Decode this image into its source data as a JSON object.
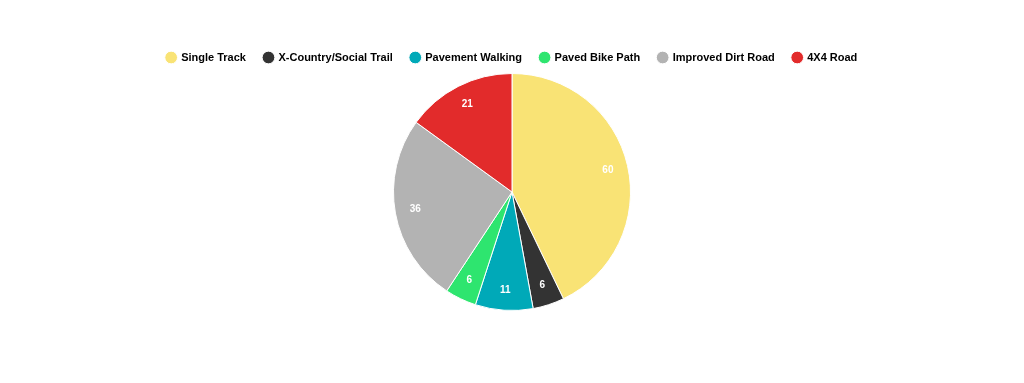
{
  "chart_data": {
    "type": "pie",
    "categories": [
      "Single Track",
      "X-Country/Social Trail",
      "Pavement Walking",
      "Paved Bike Path",
      "Improved Dirt Road",
      "4X4 Road"
    ],
    "values": [
      60,
      6,
      11,
      6,
      36,
      21
    ],
    "colors": [
      "#f9e375",
      "#333333",
      "#00a9b8",
      "#2ee56f",
      "#b3b3b3",
      "#e22b2b"
    ],
    "legend": "top",
    "data_labels": true
  }
}
